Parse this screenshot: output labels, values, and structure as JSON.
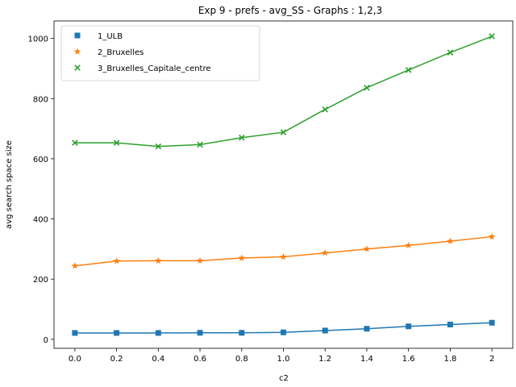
{
  "chart_data": {
    "type": "line",
    "title": "Exp 9 - prefs - avg_SS - Graphs : 1,2,3",
    "xlabel": "c2",
    "ylabel": "avg search space size",
    "x": [
      0.0,
      0.2,
      0.4,
      0.6,
      0.8,
      1.0,
      1.2,
      1.4,
      1.6,
      1.8,
      2.0
    ],
    "x_tick_labels": [
      "0.0",
      "0.2",
      "0.4",
      "0.6",
      "0.8",
      "1.0",
      "1.2",
      "1.4",
      "1.6",
      "1.8",
      "2"
    ],
    "y_ticks": [
      0,
      200,
      400,
      600,
      800,
      1000
    ],
    "y_tick_labels": [
      "0",
      "200",
      "400",
      "600",
      "800",
      "1000"
    ],
    "xlim": [
      -0.1,
      2.1
    ],
    "ylim": [
      -30,
      1058
    ],
    "grid": false,
    "legend_position": "top-left",
    "series": [
      {
        "name": "1_ULB",
        "marker": "square",
        "color": "#1f77b4",
        "values": [
          21,
          21,
          21,
          21.5,
          21.5,
          23,
          29,
          35,
          43,
          49,
          55
        ]
      },
      {
        "name": "2_Bruxelles",
        "marker": "star",
        "color": "#ff7f0e",
        "values": [
          244,
          260,
          261,
          261,
          270,
          274,
          287,
          300,
          312,
          326,
          341
        ]
      },
      {
        "name": "3_Bruxelles_Capitale_centre",
        "marker": "x",
        "color": "#2ca02c",
        "values": [
          653,
          653,
          641,
          647,
          670,
          688,
          764,
          836,
          895,
          953,
          1007
        ]
      }
    ]
  }
}
